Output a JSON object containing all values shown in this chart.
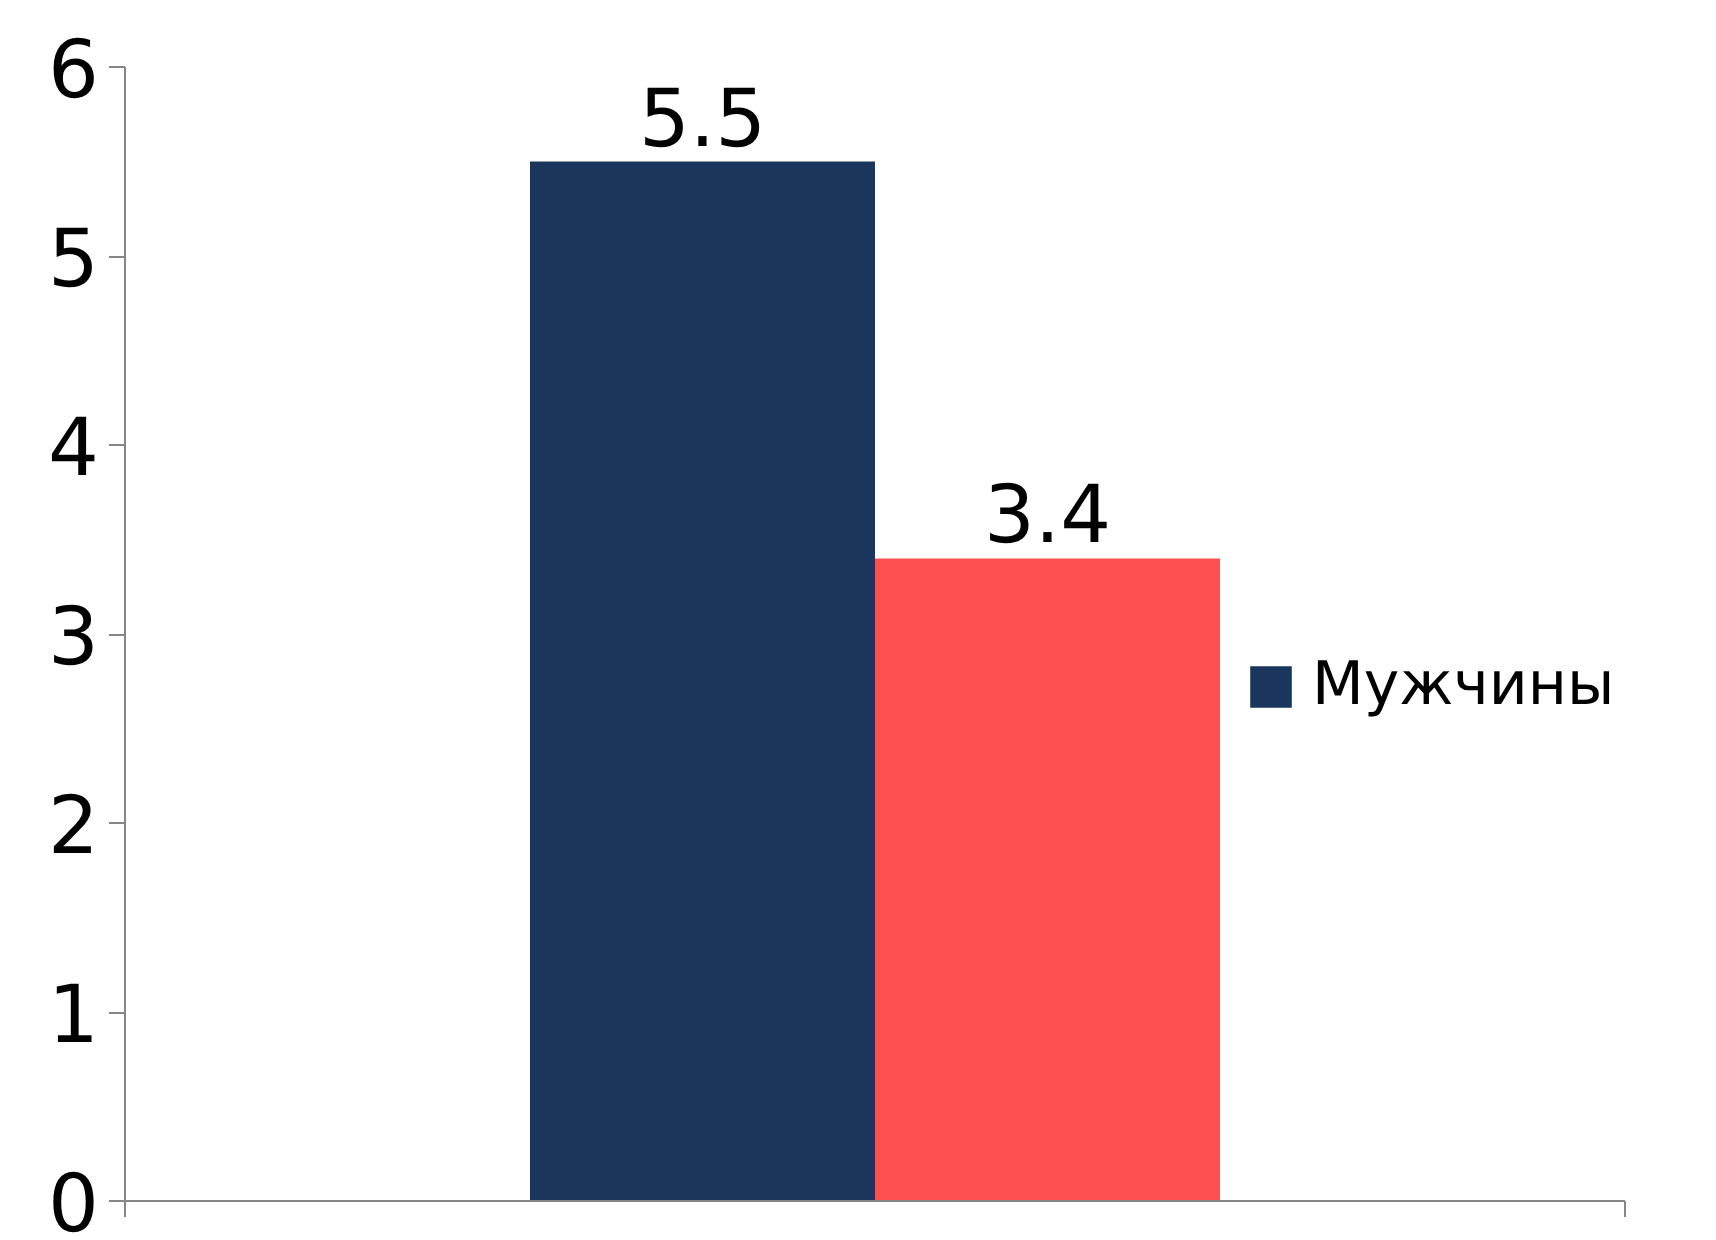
{
  "chart_data": {
    "type": "bar",
    "categories": [
      null
    ],
    "series": [
      {
        "name": "Мужчины",
        "color": "#1b365d",
        "values": [
          5.5
        ]
      },
      {
        "color": "#fe5050",
        "values": [
          3.4
        ]
      }
    ],
    "ylim": [
      0,
      6
    ],
    "yticks": [
      0,
      1,
      2,
      3,
      4,
      5,
      6
    ],
    "grid": false,
    "legend": "right",
    "data_labels": true
  }
}
